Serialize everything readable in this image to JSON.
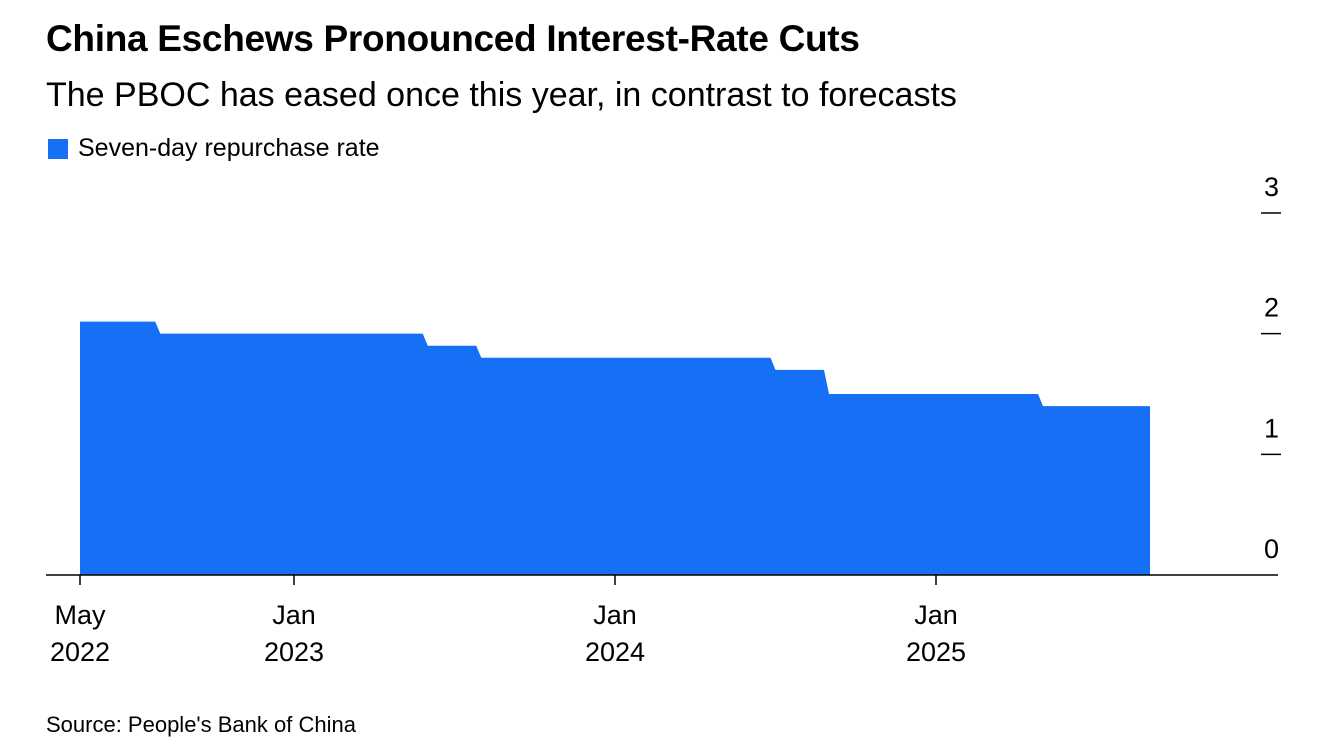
{
  "title": "China Eschews Pronounced Interest-Rate Cuts",
  "subtitle": "The PBOC has eased once this year, in contrast to forecasts",
  "source": "Source: People's Bank of China",
  "colors": {
    "series": "#1570f5",
    "axis": "#000000"
  },
  "chart_data": {
    "type": "area",
    "title": "China Eschews Pronounced Interest-Rate Cuts",
    "subtitle": "The PBOC has eased once this year, in contrast to forecasts",
    "series": [
      {
        "name": "Seven-day repurchase rate",
        "color": "#1570f5",
        "points": [
          {
            "x": "2022-05",
            "y": 2.1
          },
          {
            "x": "2022-08",
            "y": 2.0
          },
          {
            "x": "2023-06",
            "y": 1.9
          },
          {
            "x": "2023-08",
            "y": 1.8
          },
          {
            "x": "2024-07",
            "y": 1.7
          },
          {
            "x": "2024-09",
            "y": 1.5
          },
          {
            "x": "2025-05",
            "y": 1.4
          },
          {
            "x": "2025-09",
            "y": 1.4
          }
        ]
      }
    ],
    "y_ticks": [
      "0",
      "1",
      "2",
      "3"
    ],
    "ylim": [
      0,
      3
    ],
    "y_axis_position": "right",
    "x_ticks": [
      {
        "x": "2022-05",
        "line1": "May",
        "line2": "2022"
      },
      {
        "x": "2023-01",
        "line1": "Jan",
        "line2": "2023"
      },
      {
        "x": "2024-01",
        "line1": "Jan",
        "line2": "2024"
      },
      {
        "x": "2025-01",
        "line1": "Jan",
        "line2": "2025"
      }
    ],
    "legend": "top-left",
    "grid": false
  }
}
